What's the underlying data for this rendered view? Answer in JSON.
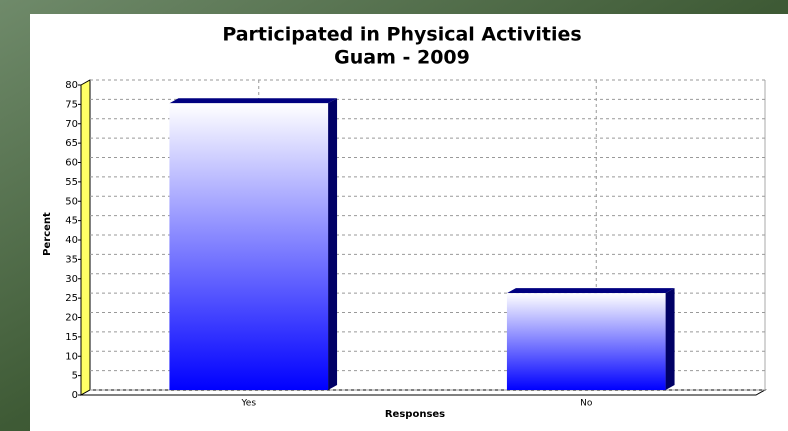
{
  "chart_data": {
    "type": "bar",
    "title": "Participated in Physical Activities",
    "subtitle": "Guam - 2009",
    "x_label": "Responses",
    "y_label": "Percent",
    "categories": [
      "Yes",
      "No"
    ],
    "values": [
      74,
      25
    ],
    "color": "#0000ff",
    "ylim": [
      0,
      80
    ],
    "yticks": [
      0,
      5,
      10,
      15,
      20,
      25,
      30,
      35,
      40,
      45,
      50,
      55,
      60,
      65,
      70,
      75,
      80
    ],
    "grid": true
  }
}
